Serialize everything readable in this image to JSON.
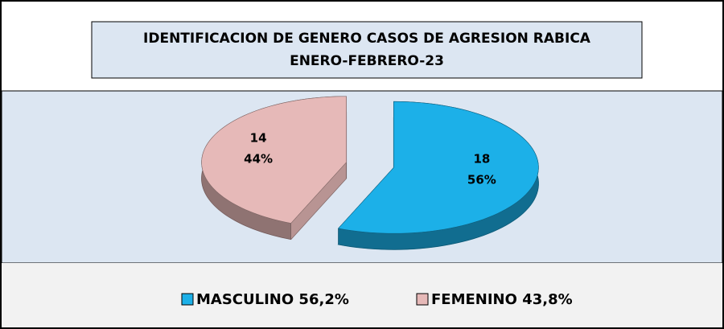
{
  "chart_data": {
    "type": "pie",
    "title": "IDENTIFICACION DE GENERO CASOS DE AGRESION RABICA",
    "subtitle": "ENERO-FEBRERO-23",
    "categories": [
      "MASCULINO 56,2%",
      "FEMENINO 43,8%"
    ],
    "values": [
      18,
      14
    ],
    "percentages": [
      {
        "value": 56,
        "label": "56%"
      },
      {
        "value": 44,
        "label": "44%"
      }
    ],
    "colors": [
      "#1cb0e8",
      "#e6b9b8"
    ],
    "legend": "bottom"
  }
}
